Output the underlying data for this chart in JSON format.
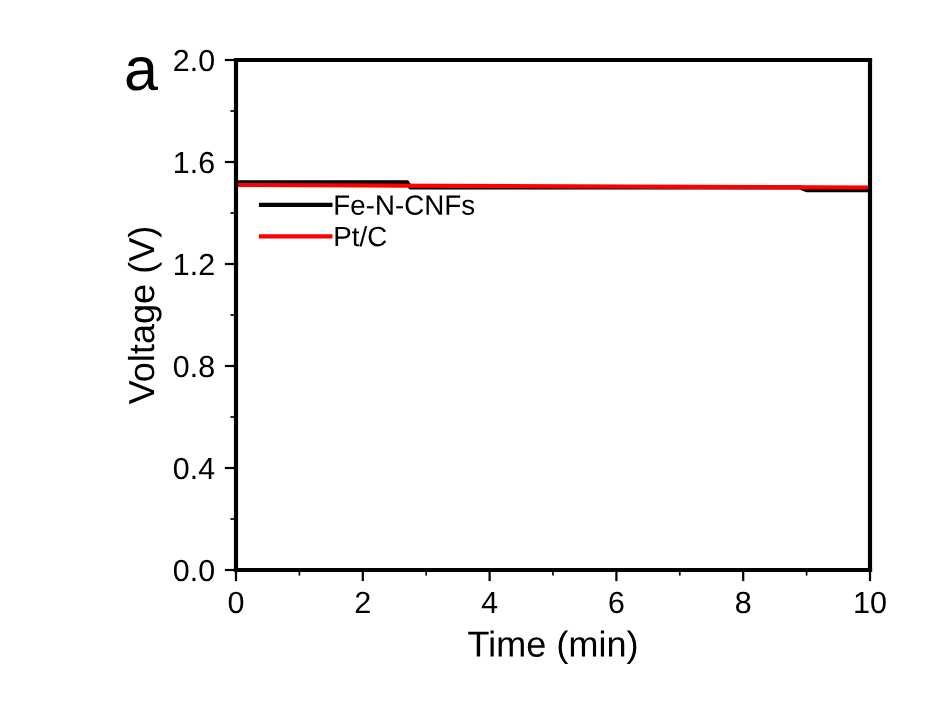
{
  "chart_data": {
    "type": "line",
    "xlabel": "Time (min)",
    "ylabel": "Voltage (V)",
    "annotations": [
      "a"
    ],
    "xlim": [
      0,
      10
    ],
    "ylim": [
      0,
      2.0
    ],
    "xticks": [
      0,
      2,
      4,
      6,
      8,
      10
    ],
    "yticks": [
      {
        "value": 0,
        "label": "0.0"
      },
      {
        "value": 0.4,
        "label": "0.4"
      },
      {
        "value": 0.8,
        "label": "0.8"
      },
      {
        "value": 1.2,
        "label": "1.2"
      },
      {
        "value": 1.6,
        "label": "1.6"
      },
      {
        "value": 2.0,
        "label": "2.0"
      }
    ],
    "series": [
      {
        "name": "Fe-N-CNFs",
        "color": "#000000",
        "x": [
          0,
          2.7,
          2.75,
          8.9,
          9.0,
          10
        ],
        "values": [
          1.52,
          1.52,
          1.5,
          1.5,
          1.49,
          1.49
        ]
      },
      {
        "name": "Pt/C",
        "color": "#ff0000",
        "x": [
          0,
          10
        ],
        "values": [
          1.51,
          1.5
        ]
      }
    ],
    "legend": "left",
    "grid": false,
    "marker": "none",
    "line_style": "solid"
  }
}
